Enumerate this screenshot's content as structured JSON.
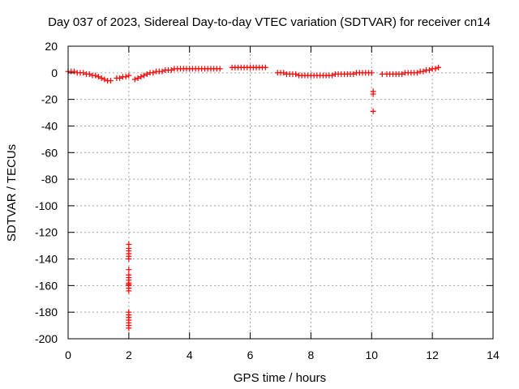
{
  "chart_data": {
    "type": "scatter",
    "title": "Day 037 of 2023, Sidereal Day-to-day VTEC variation (SDTVAR) for receiver cn14",
    "xlabel": "GPS time / hours",
    "ylabel": "SDTVAR / TECUs",
    "xlim": [
      0,
      14
    ],
    "ylim": [
      -200,
      20
    ],
    "xticks": [
      0,
      2,
      4,
      6,
      8,
      10,
      12,
      14
    ],
    "yticks": [
      20,
      0,
      -20,
      -40,
      -60,
      -80,
      -100,
      -120,
      -140,
      -160,
      -180,
      -200
    ],
    "grid": true,
    "legend": "none",
    "marker": "plus",
    "color": "#ff0000",
    "series": [
      {
        "x": [
          0.0,
          0.1,
          0.2,
          0.3,
          0.4,
          0.5,
          0.6,
          0.7,
          0.8,
          0.9,
          1.0,
          1.1,
          1.2,
          1.3,
          1.4,
          1.6,
          1.7,
          1.8,
          1.9,
          2.0,
          2.2,
          2.3,
          2.4,
          2.5,
          2.6,
          2.7,
          2.8,
          2.9,
          3.0,
          3.1,
          3.2,
          3.3,
          3.4,
          3.5,
          3.6,
          3.7,
          3.8,
          3.9,
          4.0,
          4.1,
          4.2,
          4.3,
          4.4,
          4.5,
          4.6,
          4.7,
          4.8,
          4.9,
          5.0,
          5.4,
          5.5,
          5.6,
          5.7,
          5.8,
          5.9,
          6.0,
          6.1,
          6.2,
          6.3,
          6.4,
          6.5,
          6.9,
          7.0,
          7.1,
          7.2,
          7.3,
          7.4,
          7.5,
          7.6,
          7.7,
          7.8,
          7.9,
          8.0,
          8.1,
          8.2,
          8.3,
          8.4,
          8.5,
          8.6,
          8.7,
          8.8,
          8.9,
          9.0,
          9.1,
          9.2,
          9.3,
          9.4,
          9.5,
          9.6,
          9.7,
          9.8,
          9.9,
          10.0,
          10.35,
          10.5,
          10.6,
          10.7,
          10.8,
          10.9,
          11.0,
          11.1,
          11.2,
          11.3,
          11.4,
          11.5,
          11.6,
          11.7,
          11.8,
          11.9,
          12.0,
          12.1,
          12.2
        ],
        "y": [
          1,
          1,
          1,
          0,
          0,
          0,
          -1,
          -1,
          -2,
          -2,
          -3,
          -4,
          -5,
          -6,
          -6,
          -4,
          -4,
          -3,
          -3,
          -2,
          -5,
          -4,
          -3,
          -2,
          -1,
          0,
          0,
          1,
          1,
          1,
          2,
          2,
          2,
          3,
          3,
          3,
          3,
          3,
          3,
          3,
          3,
          3,
          3,
          3,
          3,
          3,
          3,
          3,
          3,
          4,
          4,
          4,
          4,
          4,
          4,
          4,
          4,
          4,
          4,
          4,
          4,
          0,
          0,
          0,
          -1,
          -1,
          -1,
          -1,
          -2,
          -2,
          -2,
          -2,
          -2,
          -2,
          -2,
          -2,
          -2,
          -2,
          -2,
          -2,
          -1,
          -1,
          -1,
          -1,
          -1,
          -1,
          -1,
          0,
          0,
          0,
          0,
          0,
          0,
          -1,
          -1,
          -1,
          -1,
          -1,
          -1,
          -1,
          0,
          0,
          0,
          0,
          0,
          1,
          1,
          2,
          2,
          3,
          3,
          4
        ]
      },
      {
        "x": [
          2.0,
          2.0,
          2.0,
          2.0,
          2.0,
          2.0,
          2.0,
          2.0,
          2.0,
          2.0,
          2.0,
          2.0,
          2.0,
          2.0,
          2.0,
          2.0,
          2.0,
          2.0,
          2.0,
          2.0,
          2.0,
          2.0,
          10.05,
          10.05,
          10.05
        ],
        "y": [
          -129,
          -132,
          -134,
          -136,
          -138,
          -140,
          -148,
          -152,
          -154,
          -156,
          -158,
          -159,
          -160,
          -162,
          -164,
          -180,
          -182,
          -184,
          -186,
          -188,
          -190,
          -192,
          -14,
          -16,
          -29
        ]
      }
    ]
  }
}
